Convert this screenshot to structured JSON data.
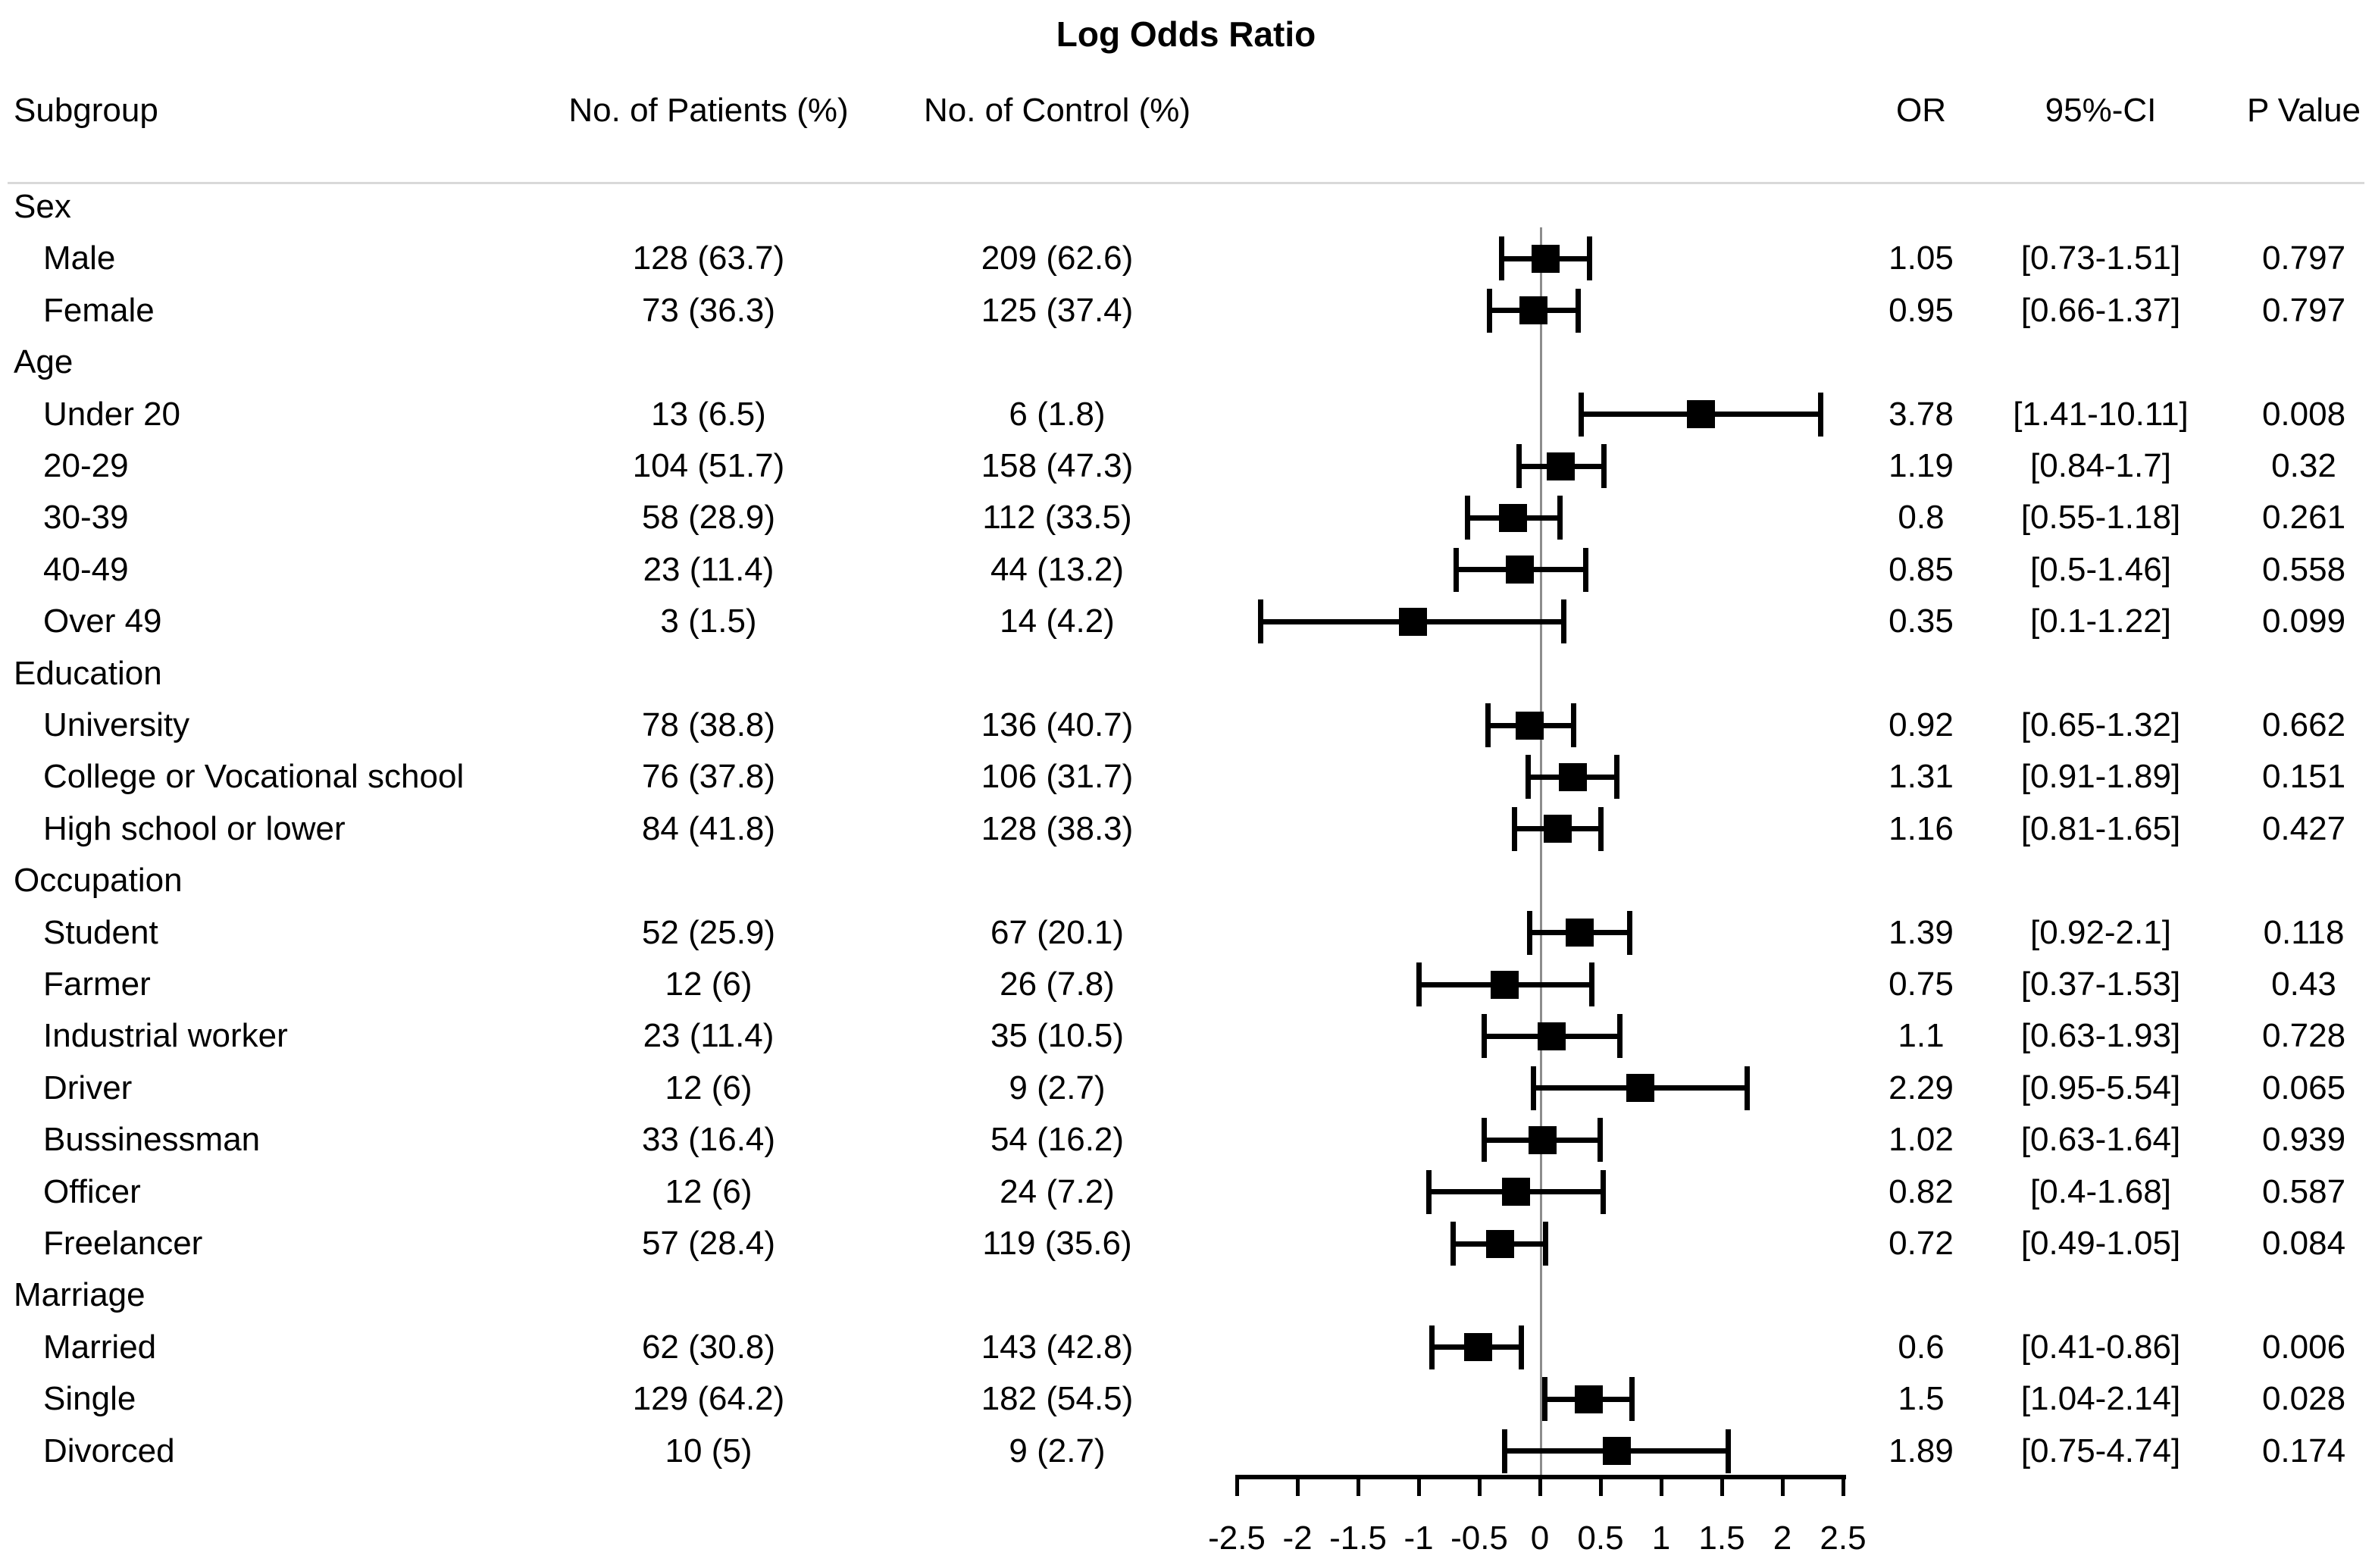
{
  "title": "Log Odds Ratio",
  "columns": {
    "subgroup": "Subgroup",
    "patients": "No. of Patients (%)",
    "control": "No. of Control (%)",
    "or": "OR",
    "ci": "95%-CI",
    "p": "P Value"
  },
  "colors": {
    "marker": "#000000",
    "zero_line": "#8c8c8c",
    "header_rule": "#d9d9d9",
    "text": "#000000"
  },
  "chart_data": {
    "type": "forest",
    "title": "Log Odds Ratio",
    "x_scale": "log odds ratio",
    "xlim": [
      -2.5,
      2.5
    ],
    "grid": false,
    "x_ticks": [
      {
        "value": -2.5,
        "label": "-2.5"
      },
      {
        "value": -2,
        "label": "-2"
      },
      {
        "value": -1.5,
        "label": "-1.5"
      },
      {
        "value": -1,
        "label": "-1"
      },
      {
        "value": -0.5,
        "label": "-0.5"
      },
      {
        "value": 0,
        "label": "0"
      },
      {
        "value": 0.5,
        "label": "0.5"
      },
      {
        "value": 1,
        "label": "1"
      },
      {
        "value": 1.5,
        "label": "1.5"
      },
      {
        "value": 2,
        "label": "2"
      },
      {
        "value": 2.5,
        "label": "2.5"
      }
    ],
    "groups": [
      {
        "label": "Sex",
        "rows": [
          {
            "label": "Male",
            "patients": "128 (63.7)",
            "control": "209 (62.6)",
            "or": 1.05,
            "ci": "[0.73-1.51]",
            "ci_low": 0.73,
            "ci_high": 1.51,
            "p": "0.797"
          },
          {
            "label": "Female",
            "patients": "73 (36.3)",
            "control": "125 (37.4)",
            "or": 0.95,
            "ci": "[0.66-1.37]",
            "ci_low": 0.66,
            "ci_high": 1.37,
            "p": "0.797"
          }
        ]
      },
      {
        "label": "Age",
        "rows": [
          {
            "label": "Under 20",
            "patients": "13 (6.5)",
            "control": "6 (1.8)",
            "or": 3.78,
            "ci": "[1.41-10.11]",
            "ci_low": 1.41,
            "ci_high": 10.11,
            "p": "0.008"
          },
          {
            "label": "20-29",
            "patients": "104 (51.7)",
            "control": "158 (47.3)",
            "or": 1.19,
            "ci": "[0.84-1.7]",
            "ci_low": 0.84,
            "ci_high": 1.7,
            "p": "0.32"
          },
          {
            "label": "30-39",
            "patients": "58 (28.9)",
            "control": "112 (33.5)",
            "or": 0.8,
            "ci": "[0.55-1.18]",
            "ci_low": 0.55,
            "ci_high": 1.18,
            "p": "0.261"
          },
          {
            "label": "40-49",
            "patients": "23 (11.4)",
            "control": "44 (13.2)",
            "or": 0.85,
            "ci": "[0.5-1.46]",
            "ci_low": 0.5,
            "ci_high": 1.46,
            "p": "0.558"
          },
          {
            "label": "Over 49",
            "patients": "3 (1.5)",
            "control": "14 (4.2)",
            "or": 0.35,
            "ci": "[0.1-1.22]",
            "ci_low": 0.1,
            "ci_high": 1.22,
            "p": "0.099"
          }
        ]
      },
      {
        "label": "Education",
        "rows": [
          {
            "label": "University",
            "patients": "78 (38.8)",
            "control": "136 (40.7)",
            "or": 0.92,
            "ci": "[0.65-1.32]",
            "ci_low": 0.65,
            "ci_high": 1.32,
            "p": "0.662"
          },
          {
            "label": "College or Vocational school",
            "patients": "76 (37.8)",
            "control": "106 (31.7)",
            "or": 1.31,
            "ci": "[0.91-1.89]",
            "ci_low": 0.91,
            "ci_high": 1.89,
            "p": "0.151"
          },
          {
            "label": "High school or lower",
            "patients": "84 (41.8)",
            "control": "128 (38.3)",
            "or": 1.16,
            "ci": "[0.81-1.65]",
            "ci_low": 0.81,
            "ci_high": 1.65,
            "p": "0.427"
          }
        ]
      },
      {
        "label": "Occupation",
        "rows": [
          {
            "label": "Student",
            "patients": "52 (25.9)",
            "control": "67 (20.1)",
            "or": 1.39,
            "ci": "[0.92-2.1]",
            "ci_low": 0.92,
            "ci_high": 2.1,
            "p": "0.118"
          },
          {
            "label": "Farmer",
            "patients": "12 (6)",
            "control": "26 (7.8)",
            "or": 0.75,
            "ci": "[0.37-1.53]",
            "ci_low": 0.37,
            "ci_high": 1.53,
            "p": "0.43"
          },
          {
            "label": "Industrial worker",
            "patients": "23 (11.4)",
            "control": "35 (10.5)",
            "or": 1.1,
            "ci": "[0.63-1.93]",
            "ci_low": 0.63,
            "ci_high": 1.93,
            "p": "0.728"
          },
          {
            "label": "Driver",
            "patients": "12 (6)",
            "control": "9 (2.7)",
            "or": 2.29,
            "ci": "[0.95-5.54]",
            "ci_low": 0.95,
            "ci_high": 5.54,
            "p": "0.065"
          },
          {
            "label": "Bussinessman",
            "patients": "33 (16.4)",
            "control": "54 (16.2)",
            "or": 1.02,
            "ci": "[0.63-1.64]",
            "ci_low": 0.63,
            "ci_high": 1.64,
            "p": "0.939"
          },
          {
            "label": "Officer",
            "patients": "12 (6)",
            "control": "24 (7.2)",
            "or": 0.82,
            "ci": "[0.4-1.68]",
            "ci_low": 0.4,
            "ci_high": 1.68,
            "p": "0.587"
          },
          {
            "label": "Freelancer",
            "patients": "57 (28.4)",
            "control": "119 (35.6)",
            "or": 0.72,
            "ci": "[0.49-1.05]",
            "ci_low": 0.49,
            "ci_high": 1.05,
            "p": "0.084"
          }
        ]
      },
      {
        "label": "Marriage",
        "rows": [
          {
            "label": "Married",
            "patients": "62 (30.8)",
            "control": "143 (42.8)",
            "or": 0.6,
            "ci": "[0.41-0.86]",
            "ci_low": 0.41,
            "ci_high": 0.86,
            "p": "0.006"
          },
          {
            "label": "Single",
            "patients": "129 (64.2)",
            "control": "182 (54.5)",
            "or": 1.5,
            "ci": "[1.04-2.14]",
            "ci_low": 1.04,
            "ci_high": 2.14,
            "p": "0.028"
          },
          {
            "label": "Divorced",
            "patients": "10 (5)",
            "control": "9 (2.7)",
            "or": 1.89,
            "ci": "[0.75-4.74]",
            "ci_low": 0.75,
            "ci_high": 4.74,
            "p": "0.174"
          }
        ]
      }
    ]
  }
}
